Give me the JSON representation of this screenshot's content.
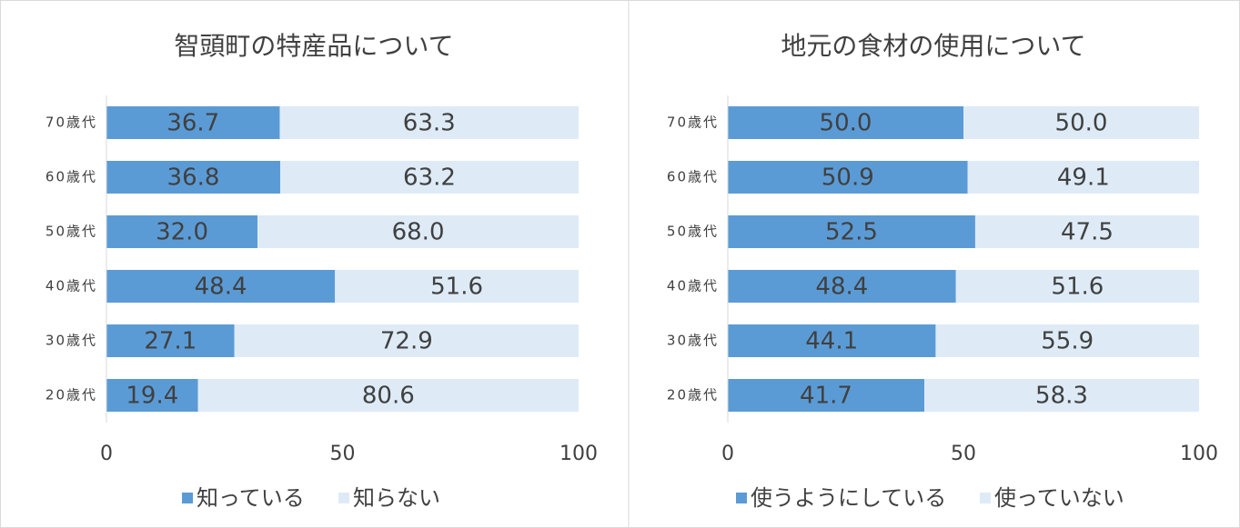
{
  "chart_data": [
    {
      "type": "stacked-bar-horizontal",
      "title": "智頭町の特産品について",
      "categories": [
        "70歳代",
        "60歳代",
        "50歳代",
        "40歳代",
        "30歳代",
        "20歳代"
      ],
      "series": [
        {
          "name": "知っている",
          "color": "#5b9bd5",
          "values": [
            36.7,
            36.8,
            32.0,
            48.4,
            27.1,
            19.4
          ],
          "value_labels": [
            "36.7",
            "36.8",
            "32.0",
            "48.4",
            "27.1",
            "19.4"
          ]
        },
        {
          "name": "知らない",
          "color": "#deebf7",
          "values": [
            63.3,
            63.2,
            68.0,
            51.6,
            72.9,
            80.6
          ],
          "value_labels": [
            "63.3",
            "63.2",
            "68.0",
            "51.6",
            "72.9",
            "80.6"
          ]
        }
      ],
      "xlim": [
        0,
        100
      ],
      "xticks": [
        0,
        50,
        100
      ],
      "legend": "bottom"
    },
    {
      "type": "stacked-bar-horizontal",
      "title": "地元の食材の使用について",
      "categories": [
        "70歳代",
        "60歳代",
        "50歳代",
        "40歳代",
        "30歳代",
        "20歳代"
      ],
      "series": [
        {
          "name": "使うようにしている",
          "color": "#5b9bd5",
          "values": [
            50.0,
            50.9,
            52.5,
            48.4,
            44.1,
            41.7
          ],
          "value_labels": [
            "50.0",
            "50.9",
            "52.5",
            "48.4",
            "44.1",
            "41.7"
          ]
        },
        {
          "name": "使っていない",
          "color": "#deebf7",
          "values": [
            50.0,
            49.1,
            47.5,
            51.6,
            55.9,
            58.3
          ],
          "value_labels": [
            "50.0",
            "49.1",
            "47.5",
            "51.6",
            "55.9",
            "58.3"
          ]
        }
      ],
      "xlim": [
        0,
        100
      ],
      "xticks": [
        0,
        50,
        100
      ],
      "legend": "bottom"
    }
  ]
}
